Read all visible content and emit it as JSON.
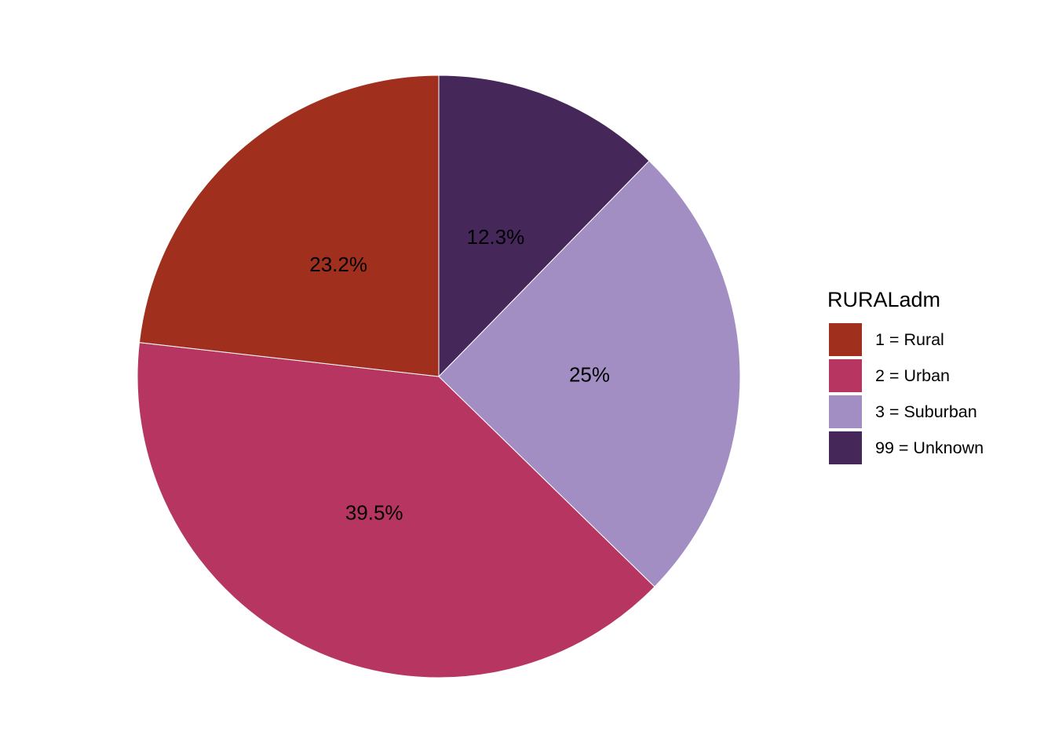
{
  "chart_data": {
    "type": "pie",
    "title": "",
    "legend": {
      "title": "RURALadm",
      "position": "right"
    },
    "slices": [
      {
        "category": "99 = Unknown",
        "value": 12.3,
        "label": "12.3%",
        "color": "#46275A"
      },
      {
        "category": "3 = Suburban",
        "value": 25.0,
        "label": "25%",
        "color": "#A38EC3"
      },
      {
        "category": "2 = Urban",
        "value": 39.5,
        "label": "39.5%",
        "color": "#B73661"
      },
      {
        "category": "1 = Rural",
        "value": 23.2,
        "label": "23.2%",
        "color": "#A0301D"
      }
    ],
    "legend_order": [
      "1 = Rural",
      "2 = Urban",
      "3 = Suburban",
      "99 = Unknown"
    ],
    "start": "12 o'clock",
    "direction": "clockwise"
  }
}
